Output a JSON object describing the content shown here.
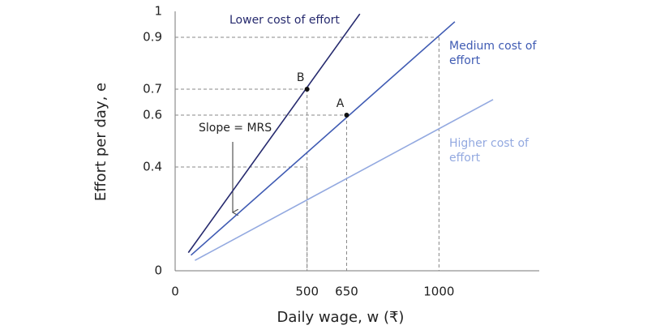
{
  "chart_data": {
    "type": "line",
    "xlabel": "Daily wage, w (₹)",
    "ylabel": "Effort per day, e",
    "xlim": [
      0,
      1380
    ],
    "ylim": [
      0,
      1
    ],
    "xticks": [
      0,
      500,
      650,
      1000
    ],
    "yticks": [
      0,
      0.4,
      0.6,
      0.7,
      0.9,
      1
    ],
    "grid": false,
    "series": [
      {
        "name": "Lower cost of effort",
        "color": "#262a6e",
        "x": [
          50,
          700
        ],
        "values": [
          0.07,
          0.99
        ]
      },
      {
        "name": "Medium cost of effort",
        "color": "#3f5bb3",
        "x": [
          60,
          1060
        ],
        "values": [
          0.06,
          0.96
        ]
      },
      {
        "name": "Higher cost of effort",
        "color": "#93a9e0",
        "x": [
          75,
          1205
        ],
        "values": [
          0.04,
          0.66
        ]
      }
    ],
    "points": [
      {
        "label": "B",
        "x": 500,
        "y": 0.7
      },
      {
        "label": "A",
        "x": 650,
        "y": 0.6
      }
    ],
    "guides": [
      {
        "x": 1000,
        "y": 0.9
      },
      {
        "x": 500,
        "y": 0.4
      }
    ],
    "annotation": "Slope = MRS"
  }
}
